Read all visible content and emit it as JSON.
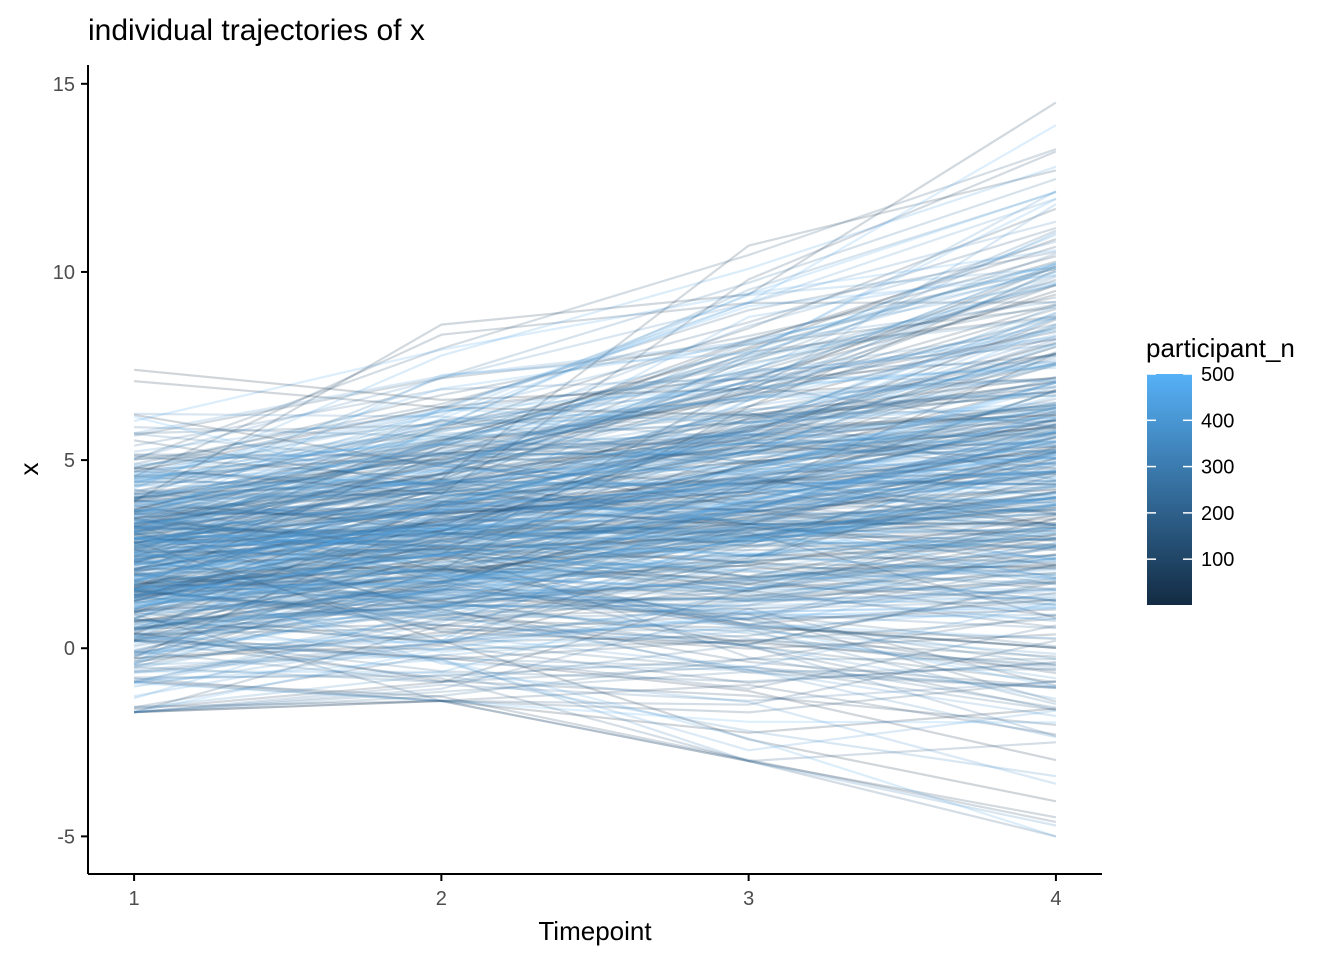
{
  "chart_data": {
    "type": "line",
    "title": "individual trajectories of x",
    "xlabel": "Timepoint",
    "ylabel": "x",
    "x": [
      1,
      2,
      3,
      4
    ],
    "xlim": [
      0.85,
      4.15
    ],
    "ylim": [
      -6,
      15.5
    ],
    "x_ticks": [
      1,
      2,
      3,
      4
    ],
    "y_ticks": [
      -5,
      0,
      5,
      10,
      15
    ],
    "grid": false,
    "legend": {
      "title": "participant_n",
      "placement": "right",
      "type": "colorbar",
      "range": [
        1,
        500
      ],
      "breaks": [
        100,
        200,
        300,
        400,
        500
      ],
      "low_color": "#132b43",
      "high_color": "#56b1f7"
    },
    "line_opacity": 0.2,
    "series_summary": {
      "participants": 500,
      "approx_mean_by_timepoint": [
        2.2,
        3.1,
        3.8,
        4.6
      ],
      "approx_range_by_timepoint": [
        [
          -1.7,
          7.4
        ],
        [
          -1.4,
          8.6
        ],
        [
          -3.0,
          10.7
        ],
        [
          -5.0,
          14.5
        ]
      ]
    },
    "series": [
      {
        "participant_n": 12,
        "values": [
          7.4,
          6.6,
          6.9,
          9.5
        ]
      },
      {
        "participant_n": 37,
        "values": [
          7.1,
          6.4,
          6.2,
          7.2
        ]
      },
      {
        "participant_n": 58,
        "values": [
          3.9,
          8.6,
          9.4,
          14.5
        ]
      },
      {
        "participant_n": 81,
        "values": [
          5.1,
          4.5,
          10.7,
          12.7
        ]
      },
      {
        "participant_n": 104,
        "values": [
          4.8,
          4.1,
          9.8,
          13.2
        ]
      },
      {
        "participant_n": 131,
        "values": [
          -1.7,
          0.6,
          2.4,
          4.6
        ]
      },
      {
        "participant_n": 156,
        "values": [
          0.9,
          -1.4,
          -1.5,
          0.2
        ]
      },
      {
        "participant_n": 177,
        "values": [
          0.2,
          -0.8,
          -3.0,
          -2.5
        ]
      },
      {
        "participant_n": 203,
        "values": [
          2.1,
          3.4,
          4.2,
          6.1
        ]
      },
      {
        "participant_n": 228,
        "values": [
          1.4,
          2.9,
          3.3,
          5.2
        ]
      },
      {
        "participant_n": 249,
        "values": [
          -0.5,
          -0.9,
          0.1,
          1.8
        ]
      },
      {
        "participant_n": 271,
        "values": [
          5.7,
          4.9,
          7.1,
          10.2
        ]
      },
      {
        "participant_n": 296,
        "values": [
          3.1,
          4.3,
          5.6,
          8.2
        ]
      },
      {
        "participant_n": 318,
        "values": [
          2.4,
          2.6,
          1.9,
          3.3
        ]
      },
      {
        "participant_n": 341,
        "values": [
          -1.6,
          -0.7,
          -2.2,
          -3.4
        ]
      },
      {
        "participant_n": 362,
        "values": [
          0.6,
          1.1,
          0.4,
          -0.8
        ]
      },
      {
        "participant_n": 387,
        "values": [
          4.3,
          5.2,
          6.8,
          11.8
        ]
      },
      {
        "participant_n": 409,
        "values": [
          1.8,
          3.7,
          5.9,
          9.1
        ]
      },
      {
        "participant_n": 433,
        "values": [
          2.9,
          3.2,
          4.6,
          6.7
        ]
      },
      {
        "participant_n": 458,
        "values": [
          -0.9,
          -0.3,
          -2.4,
          -5.0
        ]
      },
      {
        "participant_n": 476,
        "values": [
          3.5,
          6.1,
          9.2,
          13.9
        ]
      },
      {
        "participant_n": 499,
        "values": [
          1.1,
          2.2,
          2.8,
          4.1
        ]
      }
    ]
  }
}
